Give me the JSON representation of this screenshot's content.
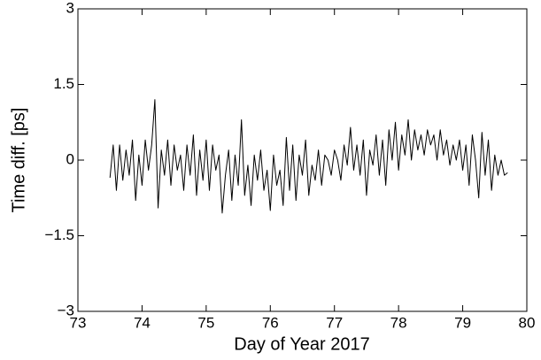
{
  "chart_data": {
    "type": "line",
    "xlabel": "Day of Year 2017",
    "ylabel": "Time diff. [ps]",
    "xlim": [
      73,
      80
    ],
    "ylim": [
      -3,
      3
    ],
    "xticks": [
      73,
      74,
      75,
      76,
      77,
      78,
      79,
      80
    ],
    "yticks": [
      {
        "value": -3,
        "label": "−3"
      },
      {
        "value": -1.5,
        "label": "−1.5"
      },
      0,
      1.5,
      3
    ],
    "grid": false,
    "color": "#000000",
    "x": [
      73.5,
      73.55,
      73.6,
      73.65,
      73.7,
      73.75,
      73.8,
      73.85,
      73.9,
      73.95,
      74,
      74.05,
      74.1,
      74.15,
      74.2,
      74.25,
      74.3,
      74.35,
      74.4,
      74.45,
      74.5,
      74.55,
      74.6,
      74.65,
      74.7,
      74.75,
      74.8,
      74.85,
      74.9,
      74.95,
      75,
      75.05,
      75.1,
      75.15,
      75.2,
      75.25,
      75.3,
      75.35,
      75.4,
      75.45,
      75.5,
      75.55,
      75.6,
      75.65,
      75.7,
      75.75,
      75.8,
      75.85,
      75.9,
      75.95,
      76,
      76.05,
      76.1,
      76.15,
      76.2,
      76.25,
      76.3,
      76.35,
      76.4,
      76.45,
      76.5,
      76.55,
      76.6,
      76.65,
      76.7,
      76.75,
      76.8,
      76.85,
      76.9,
      76.95,
      77,
      77.05,
      77.1,
      77.15,
      77.2,
      77.25,
      77.3,
      77.35,
      77.4,
      77.45,
      77.5,
      77.55,
      77.6,
      77.65,
      77.7,
      77.75,
      77.8,
      77.85,
      77.9,
      77.95,
      78,
      78.05,
      78.1,
      78.15,
      78.2,
      78.25,
      78.3,
      78.35,
      78.4,
      78.45,
      78.5,
      78.55,
      78.6,
      78.65,
      78.7,
      78.75,
      78.8,
      78.85,
      78.9,
      78.95,
      79,
      79.05,
      79.1,
      79.15,
      79.2,
      79.25,
      79.3,
      79.35,
      79.4,
      79.45,
      79.5,
      79.55,
      79.6,
      79.65,
      79.7
    ],
    "values": [
      -0.35,
      0.3,
      -0.6,
      0.3,
      -0.4,
      0.2,
      -0.3,
      0.4,
      -0.8,
      0.1,
      -0.5,
      0.4,
      -0.2,
      0.3,
      1.2,
      -0.95,
      0.2,
      -0.3,
      0.4,
      -0.5,
      0.3,
      -0.2,
      0.1,
      -0.6,
      0.3,
      -0.3,
      0.5,
      -0.7,
      0.2,
      -0.4,
      0.4,
      -0.6,
      0.3,
      -0.2,
      0.1,
      -1.05,
      -0.3,
      0.2,
      -0.8,
      0.1,
      -0.5,
      0.8,
      -0.7,
      -0.1,
      -0.9,
      0.1,
      -0.4,
      0.2,
      -0.6,
      -0.2,
      -1.0,
      0.1,
      -0.5,
      -0.2,
      -0.9,
      0.45,
      -0.6,
      0.3,
      -0.8,
      0.1,
      -0.3,
      0.4,
      -0.7,
      -0.1,
      -0.4,
      0.2,
      -0.5,
      0.1,
      0.0,
      -0.3,
      0.2,
      0.0,
      -0.4,
      0.3,
      -0.1,
      0.65,
      -0.2,
      0.3,
      -0.3,
      0.4,
      -0.7,
      0.2,
      -0.1,
      0.5,
      -0.3,
      0.4,
      -0.5,
      0.6,
      0.0,
      0.75,
      -0.2,
      0.5,
      0.1,
      0.8,
      0.0,
      0.6,
      0.2,
      0.5,
      0.1,
      0.6,
      0.3,
      0.5,
      0.0,
      0.6,
      0.1,
      0.4,
      -0.1,
      0.3,
      0.0,
      0.4,
      -0.2,
      0.3,
      -0.5,
      0.5,
      0.0,
      -0.75,
      0.55,
      -0.3,
      0.4,
      -0.6,
      0.1,
      -0.3,
      0.0,
      -0.3,
      -0.25
    ]
  }
}
